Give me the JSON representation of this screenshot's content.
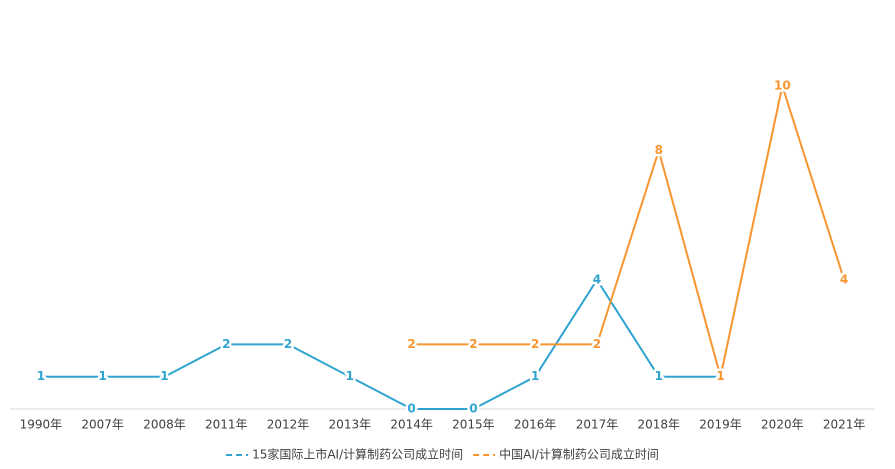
{
  "chart_data": {
    "type": "line",
    "categories": [
      "1990年",
      "2007年",
      "2008年",
      "2011年",
      "2012年",
      "2013年",
      "2014年",
      "2015年",
      "2016年",
      "2017年",
      "2018年",
      "2019年",
      "2020年",
      "2021年"
    ],
    "series": [
      {
        "name": "15家国际上市AI/计算制药公司成立时间",
        "color": "#2fa4cf",
        "values": [
          1,
          1,
          1,
          2,
          2,
          1,
          0,
          0,
          1,
          4,
          1,
          1,
          null,
          null
        ]
      },
      {
        "name": "中国AI/计算制药公司成立时间",
        "color": "#f7962f",
        "values": [
          null,
          null,
          null,
          null,
          null,
          null,
          2,
          2,
          2,
          2,
          8,
          1,
          10,
          4
        ]
      }
    ],
    "ylim": [
      0,
      10
    ],
    "legend": "bottom"
  }
}
